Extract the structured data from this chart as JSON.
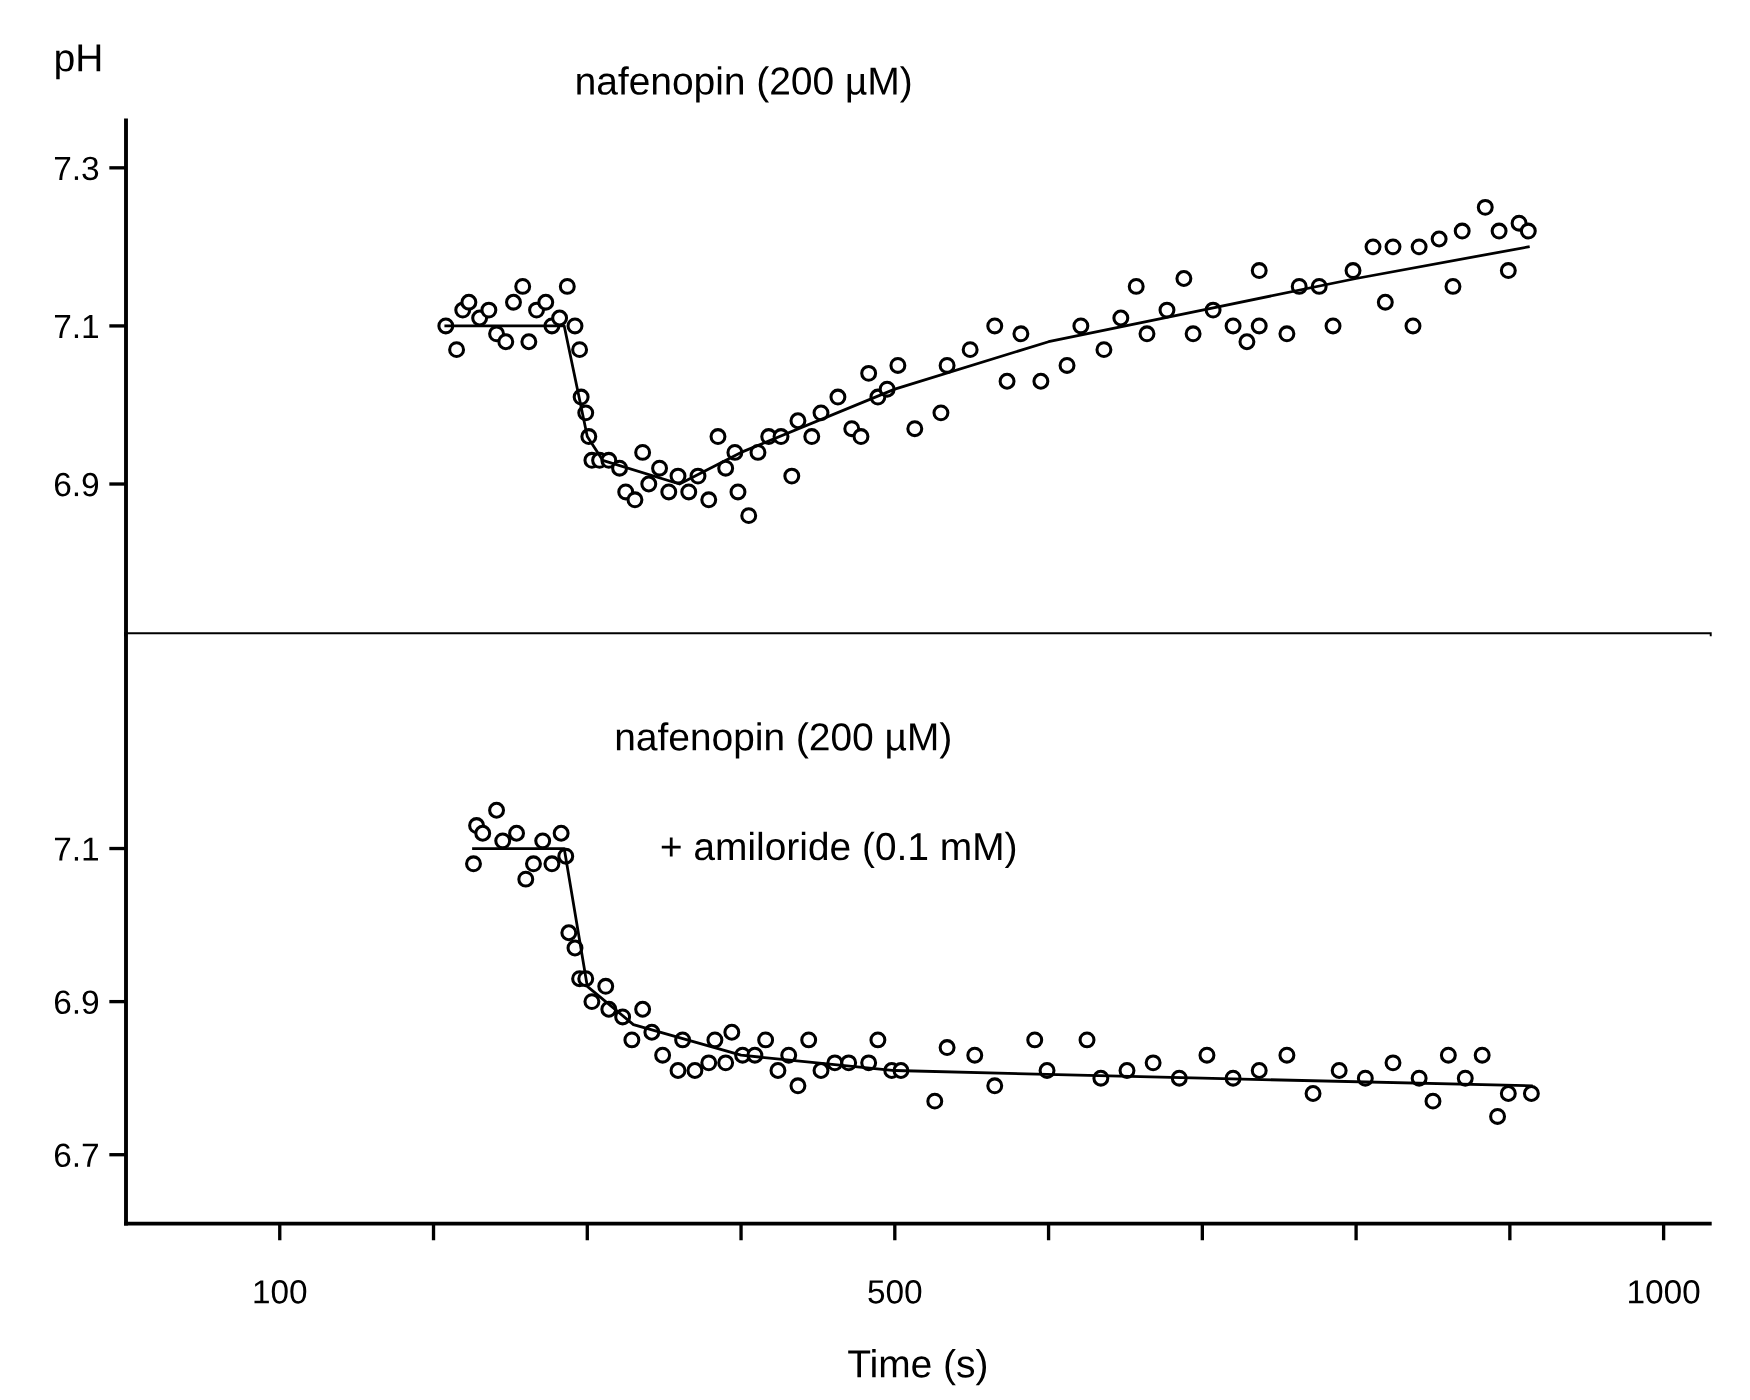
{
  "chart_data": [
    {
      "type": "scatter",
      "ylabel": "pH",
      "annotations": [
        "nafenopin (200 µM)"
      ],
      "xlim": [
        0,
        1030
      ],
      "ylim": [
        6.71,
        7.36
      ],
      "yticks": [
        6.9,
        7.1,
        7.3
      ],
      "tick_labels": "y",
      "grid": false,
      "legend": false,
      "series": [
        {
          "marker": "circle",
          "color": "#000000",
          "x": [
            208,
            215,
            219,
            223,
            230,
            236,
            241,
            247,
            252,
            258,
            262,
            267,
            273,
            277,
            282,
            287,
            292,
            295,
            296,
            299,
            301,
            303,
            308,
            314,
            321,
            325,
            331,
            336,
            340,
            347,
            353,
            359,
            366,
            372,
            379,
            385,
            390,
            396,
            398,
            405,
            411,
            418,
            426,
            433,
            437,
            446,
            452,
            463,
            472,
            478,
            483,
            489,
            495,
            502,
            513,
            530,
            534,
            549,
            565,
            573,
            582,
            595,
            612,
            621,
            636,
            647,
            657,
            664,
            677,
            688,
            694,
            707,
            720,
            729,
            737,
            737,
            755,
            763,
            776,
            785,
            798,
            811,
            819,
            824,
            837,
            841,
            854,
            863,
            869,
            884,
            893,
            899,
            906,
            912
          ],
          "values": [
            7.1,
            7.07,
            7.12,
            7.13,
            7.11,
            7.12,
            7.09,
            7.08,
            7.13,
            7.15,
            7.08,
            7.12,
            7.13,
            7.1,
            7.11,
            7.15,
            7.1,
            7.07,
            7.01,
            6.99,
            6.96,
            6.93,
            6.93,
            6.93,
            6.92,
            6.89,
            6.88,
            6.94,
            6.9,
            6.92,
            6.89,
            6.91,
            6.89,
            6.91,
            6.88,
            6.96,
            6.92,
            6.94,
            6.89,
            6.86,
            6.94,
            6.96,
            6.96,
            6.91,
            6.98,
            6.96,
            6.99,
            7.01,
            6.97,
            6.96,
            7.04,
            7.01,
            7.02,
            7.05,
            6.97,
            6.99,
            7.05,
            7.07,
            7.1,
            7.03,
            7.09,
            7.03,
            7.05,
            7.1,
            7.07,
            7.11,
            7.15,
            7.09,
            7.12,
            7.16,
            7.09,
            7.12,
            7.1,
            7.08,
            7.17,
            7.1,
            7.09,
            7.15,
            7.15,
            7.1,
            7.17,
            7.2,
            7.13,
            7.2,
            7.1,
            7.2,
            7.21,
            7.15,
            7.22,
            7.25,
            7.22,
            7.17,
            7.23,
            7.22
          ]
        },
        {
          "type": "line",
          "line_style": "solid",
          "color": "#000000",
          "x": [
            208,
            285,
            300,
            310,
            360,
            400,
            500,
            600,
            700,
            800,
            912
          ],
          "values": [
            7.1,
            7.1,
            6.96,
            6.93,
            6.9,
            6.94,
            7.02,
            7.08,
            7.12,
            7.16,
            7.2
          ]
        }
      ]
    },
    {
      "type": "scatter",
      "xlabel": "Time (s)",
      "annotations": [
        "nafenopin (200 µM)",
        "+ amiloride (0.1 mM)"
      ],
      "xlim": [
        0,
        1030
      ],
      "ylim": [
        6.61,
        7.38
      ],
      "yticks": [
        6.7,
        6.9,
        7.1
      ],
      "xticks": [
        100,
        {
          "value": 200,
          "label": null
        },
        {
          "value": 300,
          "label": null
        },
        {
          "value": 400,
          "label": null
        },
        500,
        {
          "value": 600,
          "label": null
        },
        {
          "value": 700,
          "label": null
        },
        {
          "value": 800,
          "label": null
        },
        {
          "value": 900,
          "label": null
        },
        1000
      ],
      "grid": false,
      "legend": false,
      "series": [
        {
          "marker": "circle",
          "color": "#000000",
          "x": [
            226,
            228,
            232,
            241,
            245,
            254,
            260,
            265,
            271,
            277,
            283,
            286,
            288,
            292,
            295,
            299,
            303,
            312,
            314,
            323,
            329,
            336,
            342,
            349,
            359,
            362,
            370,
            379,
            383,
            390,
            394,
            401,
            409,
            416,
            424,
            431,
            437,
            444,
            452,
            461,
            470,
            483,
            489,
            498,
            504,
            526,
            534,
            552,
            565,
            591,
            599,
            625,
            634,
            651,
            668,
            685,
            703,
            720,
            737,
            755,
            772,
            789,
            806,
            824,
            841,
            850,
            860,
            871,
            882,
            892,
            899,
            914
          ],
          "values": [
            7.08,
            7.13,
            7.12,
            7.15,
            7.11,
            7.12,
            7.06,
            7.08,
            7.11,
            7.08,
            7.12,
            7.09,
            6.99,
            6.97,
            6.93,
            6.93,
            6.9,
            6.92,
            6.89,
            6.88,
            6.85,
            6.89,
            6.86,
            6.83,
            6.81,
            6.85,
            6.81,
            6.82,
            6.85,
            6.82,
            6.86,
            6.83,
            6.83,
            6.85,
            6.81,
            6.83,
            6.79,
            6.85,
            6.81,
            6.82,
            6.82,
            6.82,
            6.85,
            6.81,
            6.81,
            6.77,
            6.84,
            6.83,
            6.79,
            6.85,
            6.81,
            6.85,
            6.8,
            6.81,
            6.82,
            6.8,
            6.83,
            6.8,
            6.81,
            6.83,
            6.78,
            6.81,
            6.8,
            6.82,
            6.8,
            6.77,
            6.83,
            6.8,
            6.83,
            6.75,
            6.78,
            6.78
          ]
        },
        {
          "type": "line",
          "line_style": "solid",
          "color": "#000000",
          "x": [
            226,
            285,
            300,
            330,
            400,
            500,
            700,
            914
          ],
          "values": [
            7.1,
            7.1,
            6.92,
            6.87,
            6.83,
            6.81,
            6.8,
            6.79
          ]
        }
      ]
    }
  ]
}
